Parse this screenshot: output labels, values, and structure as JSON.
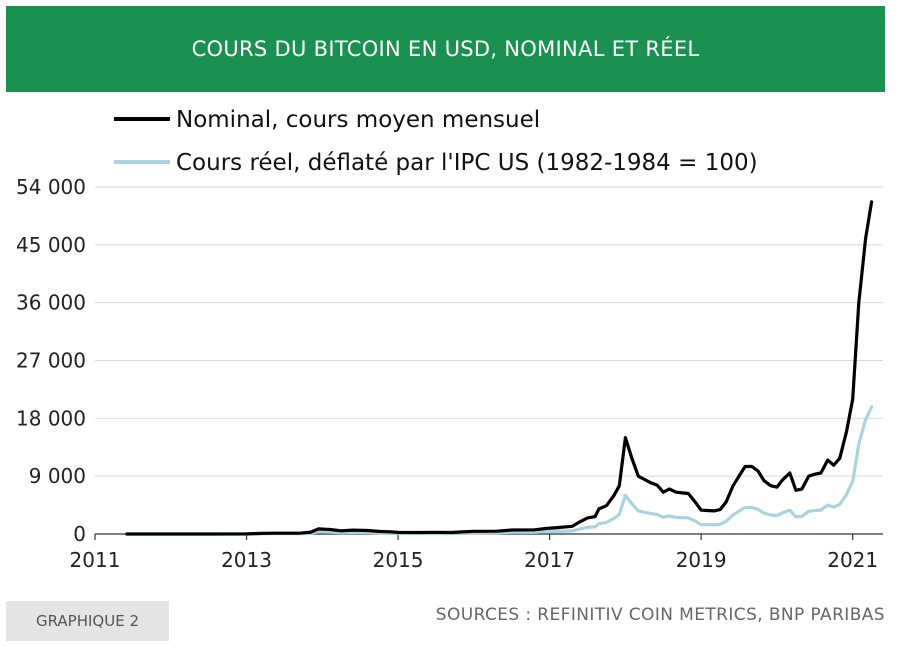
{
  "header": {
    "title": "COURS DU BITCOIN EN USD, NOMINAL ET RÉEL"
  },
  "footer": {
    "badge": "GRAPHIQUE 2",
    "source": "SOURCES : REFINITIV COIN METRICS, BNP PARIBAS"
  },
  "colors": {
    "header_bg": "#1a9150",
    "nominal_line": "#000000",
    "real_line": "#a9d3e3",
    "grid": "#d9d9d9"
  },
  "chart_data": {
    "type": "line",
    "title": "COURS DU BITCOIN EN USD, NOMINAL ET RÉEL",
    "xlabel": "",
    "ylabel": "",
    "xlim": [
      2011.0,
      2021.4
    ],
    "ylim": [
      0,
      54000
    ],
    "grid": "horizontal",
    "legend_placement": "top-left",
    "x_ticks": [
      2011,
      2013,
      2015,
      2017,
      2019,
      2021
    ],
    "x_tick_labels": [
      "2011",
      "2013",
      "2015",
      "2017",
      "2019",
      "2021"
    ],
    "y_ticks": [
      0,
      9000,
      18000,
      27000,
      36000,
      45000,
      54000
    ],
    "y_tick_labels": [
      "0",
      "9 000",
      "18 000",
      "27 000",
      "36 000",
      "45 000",
      "54 000"
    ],
    "series": [
      {
        "name": "Nominal, cours moyen mensuel",
        "color": "#000000",
        "points": [
          [
            2011.42,
            0
          ],
          [
            2012.0,
            5
          ],
          [
            2012.5,
            7
          ],
          [
            2013.0,
            15
          ],
          [
            2013.2,
            100
          ],
          [
            2013.35,
            120
          ],
          [
            2013.7,
            130
          ],
          [
            2013.85,
            300
          ],
          [
            2013.95,
            800
          ],
          [
            2014.1,
            700
          ],
          [
            2014.25,
            500
          ],
          [
            2014.4,
            600
          ],
          [
            2014.6,
            550
          ],
          [
            2014.75,
            400
          ],
          [
            2014.9,
            350
          ],
          [
            2015.0,
            250
          ],
          [
            2015.3,
            240
          ],
          [
            2015.5,
            260
          ],
          [
            2015.7,
            230
          ],
          [
            2015.85,
            320
          ],
          [
            2016.0,
            420
          ],
          [
            2016.3,
            430
          ],
          [
            2016.5,
            620
          ],
          [
            2016.8,
            650
          ],
          [
            2016.95,
            850
          ],
          [
            2017.1,
            1000
          ],
          [
            2017.3,
            1200
          ],
          [
            2017.4,
            1900
          ],
          [
            2017.5,
            2500
          ],
          [
            2017.6,
            2700
          ],
          [
            2017.65,
            3900
          ],
          [
            2017.75,
            4400
          ],
          [
            2017.85,
            6000
          ],
          [
            2017.92,
            7500
          ],
          [
            2018.0,
            15000
          ],
          [
            2018.08,
            12000
          ],
          [
            2018.17,
            9000
          ],
          [
            2018.25,
            8500
          ],
          [
            2018.33,
            8000
          ],
          [
            2018.42,
            7600
          ],
          [
            2018.5,
            6500
          ],
          [
            2018.58,
            7000
          ],
          [
            2018.67,
            6500
          ],
          [
            2018.75,
            6400
          ],
          [
            2018.83,
            6300
          ],
          [
            2018.92,
            5000
          ],
          [
            2019.0,
            3700
          ],
          [
            2019.08,
            3650
          ],
          [
            2019.17,
            3600
          ],
          [
            2019.25,
            3800
          ],
          [
            2019.33,
            5000
          ],
          [
            2019.42,
            7500
          ],
          [
            2019.5,
            9000
          ],
          [
            2019.58,
            10500
          ],
          [
            2019.67,
            10500
          ],
          [
            2019.75,
            9800
          ],
          [
            2019.83,
            8300
          ],
          [
            2019.92,
            7500
          ],
          [
            2020.0,
            7300
          ],
          [
            2020.08,
            8500
          ],
          [
            2020.17,
            9500
          ],
          [
            2020.25,
            6800
          ],
          [
            2020.33,
            7000
          ],
          [
            2020.42,
            9000
          ],
          [
            2020.5,
            9300
          ],
          [
            2020.58,
            9500
          ],
          [
            2020.67,
            11500
          ],
          [
            2020.75,
            10700
          ],
          [
            2020.83,
            11800
          ],
          [
            2020.92,
            16000
          ],
          [
            2021.0,
            21000
          ],
          [
            2021.08,
            36000
          ],
          [
            2021.17,
            46000
          ],
          [
            2021.25,
            51700
          ]
        ]
      },
      {
        "name": "Cours réel, déflaté par l'IPC US (1982-1984 = 100)",
        "color": "#a9d3e3",
        "points": [
          [
            2011.42,
            0
          ],
          [
            2012.0,
            2
          ],
          [
            2012.5,
            3
          ],
          [
            2013.0,
            7
          ],
          [
            2013.2,
            40
          ],
          [
            2013.35,
            50
          ],
          [
            2013.7,
            55
          ],
          [
            2013.85,
            120
          ],
          [
            2013.95,
            340
          ],
          [
            2014.1,
            300
          ],
          [
            2014.25,
            210
          ],
          [
            2014.4,
            250
          ],
          [
            2014.6,
            230
          ],
          [
            2014.75,
            170
          ],
          [
            2014.9,
            150
          ],
          [
            2015.0,
            105
          ],
          [
            2015.3,
            100
          ],
          [
            2015.5,
            110
          ],
          [
            2015.7,
            97
          ],
          [
            2015.85,
            135
          ],
          [
            2016.0,
            175
          ],
          [
            2016.3,
            180
          ],
          [
            2016.5,
            260
          ],
          [
            2016.8,
            270
          ],
          [
            2016.95,
            355
          ],
          [
            2017.1,
            410
          ],
          [
            2017.3,
            490
          ],
          [
            2017.4,
            780
          ],
          [
            2017.5,
            1020
          ],
          [
            2017.6,
            1100
          ],
          [
            2017.65,
            1600
          ],
          [
            2017.75,
            1800
          ],
          [
            2017.85,
            2450
          ],
          [
            2017.92,
            3050
          ],
          [
            2018.0,
            6000
          ],
          [
            2018.08,
            4800
          ],
          [
            2018.17,
            3600
          ],
          [
            2018.25,
            3400
          ],
          [
            2018.33,
            3200
          ],
          [
            2018.42,
            3050
          ],
          [
            2018.5,
            2600
          ],
          [
            2018.58,
            2800
          ],
          [
            2018.67,
            2600
          ],
          [
            2018.75,
            2550
          ],
          [
            2018.83,
            2500
          ],
          [
            2018.92,
            2000
          ],
          [
            2019.0,
            1470
          ],
          [
            2019.08,
            1450
          ],
          [
            2019.17,
            1430
          ],
          [
            2019.25,
            1500
          ],
          [
            2019.33,
            1970
          ],
          [
            2019.42,
            2950
          ],
          [
            2019.5,
            3550
          ],
          [
            2019.58,
            4130
          ],
          [
            2019.67,
            4130
          ],
          [
            2019.75,
            3850
          ],
          [
            2019.83,
            3260
          ],
          [
            2019.92,
            2950
          ],
          [
            2020.0,
            2850
          ],
          [
            2020.08,
            3330
          ],
          [
            2020.17,
            3720
          ],
          [
            2020.25,
            2680
          ],
          [
            2020.33,
            2760
          ],
          [
            2020.42,
            3540
          ],
          [
            2020.5,
            3650
          ],
          [
            2020.58,
            3720
          ],
          [
            2020.67,
            4500
          ],
          [
            2020.75,
            4180
          ],
          [
            2020.83,
            4600
          ],
          [
            2020.92,
            6200
          ],
          [
            2021.0,
            8200
          ],
          [
            2021.08,
            14000
          ],
          [
            2021.17,
            17800
          ],
          [
            2021.25,
            19800
          ]
        ]
      }
    ]
  }
}
